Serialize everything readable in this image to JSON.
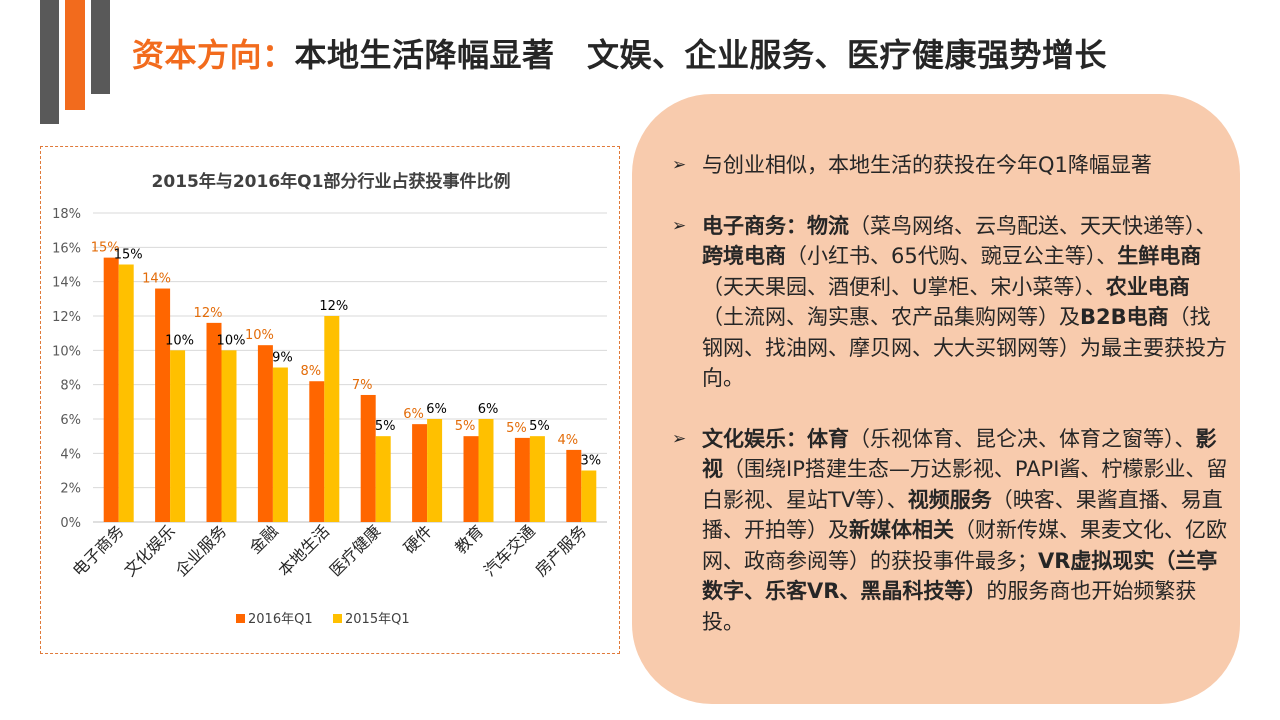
{
  "title": {
    "highlight": "资本方向：",
    "main": "本地生活降幅显著　文娱、企业服务、医疗健康强势增长"
  },
  "colors": {
    "accent": "#f26b1d",
    "series_2016": "#ff6600",
    "series_2015": "#ffc000",
    "panel": "#f8cbad"
  },
  "chart_data": {
    "type": "bar",
    "title": "2015年与2016年Q1部分行业占获投事件比例",
    "categories": [
      "电子商务",
      "文化娱乐",
      "企业服务",
      "金融",
      "本地生活",
      "医疗健康",
      "硬件",
      "教育",
      "汽车交通",
      "房产服务"
    ],
    "series": [
      {
        "name": "2016年Q1",
        "values": [
          15.4,
          13.6,
          11.6,
          10.3,
          8.2,
          7.4,
          5.7,
          5.0,
          4.9,
          4.2
        ],
        "labels": [
          "15%",
          "14%",
          "12%",
          "10%",
          "8%",
          "7%",
          "6%",
          "5%",
          "5%",
          "4%"
        ]
      },
      {
        "name": "2015年Q1",
        "values": [
          15.0,
          10.0,
          10.0,
          9.0,
          12.0,
          5.0,
          6.0,
          6.0,
          5.0,
          3.0
        ],
        "labels": [
          "15%",
          "10%",
          "10%",
          "9%",
          "12%",
          "5%",
          "6%",
          "6%",
          "5%",
          "3%"
        ]
      }
    ],
    "ylim": [
      0,
      18
    ],
    "yticks": [
      "0%",
      "2%",
      "4%",
      "6%",
      "8%",
      "10%",
      "12%",
      "14%",
      "16%",
      "18%"
    ],
    "grid": true,
    "legend": "bottom"
  },
  "notes": [
    {
      "runs": [
        {
          "t": "与创业相似，本地生活的获投在今年Q1降幅显著",
          "b": false
        }
      ]
    },
    {
      "runs": [
        {
          "t": "电子商务：物流",
          "b": true
        },
        {
          "t": "（菜鸟网络、云鸟配送、天天快递等）、",
          "b": false
        },
        {
          "t": "跨境电商",
          "b": true
        },
        {
          "t": "（小红书、65代购、豌豆公主等）、",
          "b": false
        },
        {
          "t": "生鲜电商",
          "b": true
        },
        {
          "t": "（天天果园、酒便利、U掌柜、宋小菜等）、",
          "b": false
        },
        {
          "t": "农业电商",
          "b": true
        },
        {
          "t": "（土流网、淘实惠、农产品集购网等）及",
          "b": false
        },
        {
          "t": "B2B电商",
          "b": true
        },
        {
          "t": "（找钢网、找油网、摩贝网、大大买钢网等）为最主要获投方向。",
          "b": false
        }
      ]
    },
    {
      "runs": [
        {
          "t": "文化娱乐：体育",
          "b": true
        },
        {
          "t": "（乐视体育、昆仑决、体育之窗等）、",
          "b": false
        },
        {
          "t": "影视",
          "b": true
        },
        {
          "t": "（围绕IP搭建生态—万达影视、PAPI酱、柠檬影业、留白影视、星站TV等）、",
          "b": false
        },
        {
          "t": "视频服务",
          "b": true
        },
        {
          "t": "（映客、果酱直播、易直播、开拍等）及",
          "b": false
        },
        {
          "t": "新媒体相关",
          "b": true
        },
        {
          "t": "（财新传媒、果麦文化、亿欧网、政商参阅等）的获投事件最多；",
          "b": false
        },
        {
          "t": "VR虚拟现实（兰亭数字、乐客VR、黑晶科技等）",
          "b": true
        },
        {
          "t": "的服务商也开始频繁获投。",
          "b": false
        }
      ]
    }
  ]
}
